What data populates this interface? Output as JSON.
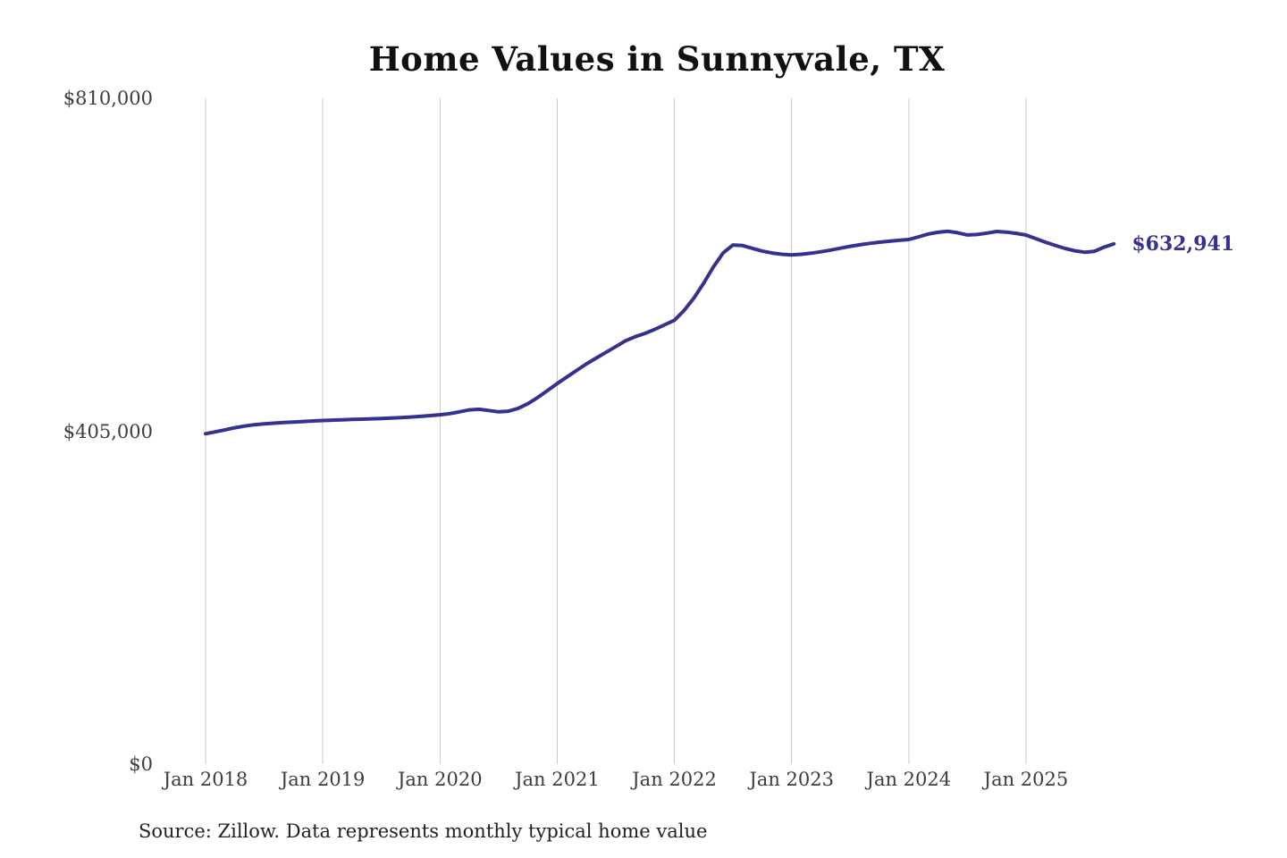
{
  "title": "Home Values in Sunnyvale, TX",
  "end_label": "$632,941",
  "source_note": "Source: Zillow. Data represents monthly typical home value",
  "colors": {
    "line": "#363090",
    "grid": "#c9c9c9",
    "tick_text": "#3d3d3d",
    "title_text": "#111111",
    "source_text": "#222222"
  },
  "chart_data": {
    "type": "line",
    "title": "Home Values in Sunnyvale, TX",
    "x_start": "2018-01",
    "x_end": "2025-10",
    "x_interval": "monthly",
    "x_tick_labels": [
      "Jan 2018",
      "Jan 2019",
      "Jan 2020",
      "Jan 2021",
      "Jan 2022",
      "Jan 2023",
      "Jan 2024",
      "Jan 2025"
    ],
    "y_ticks": [
      {
        "value": 0,
        "label": "$0"
      },
      {
        "value": 405000,
        "label": "$405,000"
      },
      {
        "value": 810000,
        "label": "$810,000"
      }
    ],
    "ylim": [
      0,
      810000
    ],
    "grid": "vertical-only",
    "legend": "none",
    "end_value": 632941,
    "series": [
      {
        "name": "Monthly typical home value",
        "values": [
          402000,
          404200,
          406700,
          409200,
          411300,
          412900,
          413900,
          414800,
          415500,
          416200,
          416800,
          417500,
          418100,
          418500,
          418900,
          419300,
          419700,
          420100,
          420500,
          421000,
          421600,
          422300,
          423100,
          424000,
          425000,
          426400,
          428600,
          431000,
          431800,
          430200,
          428600,
          429400,
          432800,
          438500,
          446000,
          454500,
          463000,
          471000,
          479000,
          487000,
          494000,
          501000,
          508000,
          515000,
          520000,
          524000,
          529000,
          534500,
          540000,
          552000,
          567000,
          585000,
          605000,
          622000,
          631600,
          630800,
          627500,
          624200,
          621800,
          620300,
          619500,
          620300,
          621600,
          623300,
          625400,
          627700,
          629900,
          631800,
          633500,
          634900,
          636100,
          637200,
          638200,
          641500,
          645000,
          647000,
          648200,
          646500,
          643800,
          644300,
          646000,
          648000,
          647200,
          645700,
          643600,
          639300,
          634900,
          631000,
          627300,
          624500,
          622800,
          623900,
          629000,
          632941
        ]
      }
    ]
  }
}
